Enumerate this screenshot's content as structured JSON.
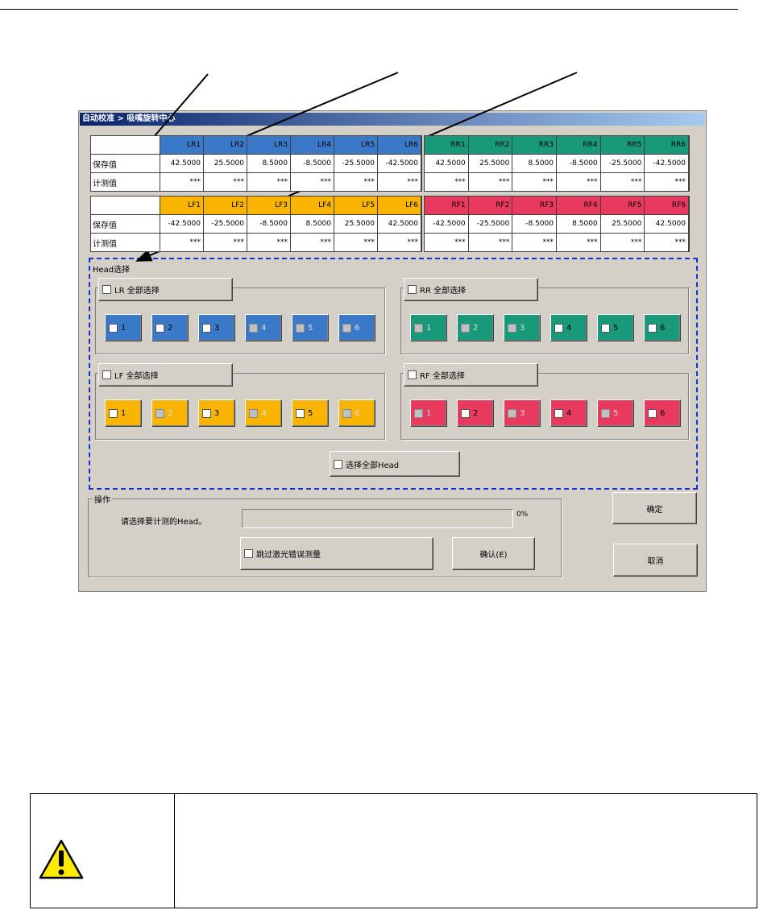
{
  "dialog": {
    "title": "自动校准 > 吸嘴旋转中心",
    "tables": [
      {
        "row_labels": [
          "保存值",
          "计测值"
        ],
        "groups": [
          {
            "color": "#3a78c8",
            "heads": [
              "LR1",
              "LR2",
              "LR3",
              "LR4",
              "LR5",
              "LR6"
            ],
            "saved": [
              "42.5000",
              "25.5000",
              "8.5000",
              "-8.5000",
              "-25.5000",
              "-42.5000"
            ],
            "measured": [
              "***",
              "***",
              "***",
              "***",
              "***",
              "***"
            ]
          },
          {
            "color": "#17997a",
            "heads": [
              "RR1",
              "RR2",
              "RR3",
              "RR4",
              "RR5",
              "RR6"
            ],
            "saved": [
              "42.5000",
              "25.5000",
              "8.5000",
              "-8.5000",
              "-25.5000",
              "-42.5000"
            ],
            "measured": [
              "***",
              "***",
              "***",
              "***",
              "***",
              "***"
            ]
          }
        ]
      },
      {
        "row_labels": [
          "保存值",
          "计测值"
        ],
        "groups": [
          {
            "color": "#f8b400",
            "heads": [
              "LF1",
              "LF2",
              "LF3",
              "LF4",
              "LF5",
              "LF6"
            ],
            "saved": [
              "-42.5000",
              "-25.5000",
              "-8.5000",
              "8.5000",
              "25.5000",
              "42.5000"
            ],
            "measured": [
              "***",
              "***",
              "***",
              "***",
              "***",
              "***"
            ]
          },
          {
            "color": "#e8395f",
            "heads": [
              "RF1",
              "RF2",
              "RF3",
              "RF4",
              "RF5",
              "RF6"
            ],
            "saved": [
              "-42.5000",
              "-25.5000",
              "-8.5000",
              "8.5000",
              "25.5000",
              "42.5000"
            ],
            "measured": [
              "***",
              "***",
              "***",
              "***",
              "***",
              "***"
            ]
          }
        ]
      }
    ],
    "head_select": {
      "title": "Head选择",
      "groups": [
        {
          "label": "LR 全部选择",
          "color": "#3a78c8",
          "buttons": [
            {
              "label": "1",
              "enabled": true
            },
            {
              "label": "2",
              "enabled": true
            },
            {
              "label": "3",
              "enabled": true
            },
            {
              "label": "4",
              "enabled": false
            },
            {
              "label": "5",
              "enabled": false
            },
            {
              "label": "6",
              "enabled": false
            }
          ]
        },
        {
          "label": "RR 全部选择",
          "color": "#17997a",
          "buttons": [
            {
              "label": "1",
              "enabled": false
            },
            {
              "label": "2",
              "enabled": false
            },
            {
              "label": "3",
              "enabled": false
            },
            {
              "label": "4",
              "enabled": true
            },
            {
              "label": "5",
              "enabled": true
            },
            {
              "label": "6",
              "enabled": true
            }
          ]
        },
        {
          "label": "LF 全部选择",
          "color": "#f8b400",
          "buttons": [
            {
              "label": "1",
              "enabled": true
            },
            {
              "label": "2",
              "enabled": false
            },
            {
              "label": "3",
              "enabled": true
            },
            {
              "label": "4",
              "enabled": false
            },
            {
              "label": "5",
              "enabled": true
            },
            {
              "label": "6",
              "enabled": false
            }
          ]
        },
        {
          "label": "RF 全部选择",
          "color": "#e8395f",
          "buttons": [
            {
              "label": "1",
              "enabled": false
            },
            {
              "label": "2",
              "enabled": true
            },
            {
              "label": "3",
              "enabled": false
            },
            {
              "label": "4",
              "enabled": true
            },
            {
              "label": "5",
              "enabled": false
            },
            {
              "label": "6",
              "enabled": true
            }
          ]
        }
      ],
      "select_all": "选择全部Head"
    },
    "operation": {
      "title": "操作",
      "prompt": "请选择要计测的Head。",
      "progress": "0%",
      "skip": "跳过激光错误测量",
      "confirm": "确认(E)"
    },
    "ok": "确定",
    "cancel": "取消"
  }
}
